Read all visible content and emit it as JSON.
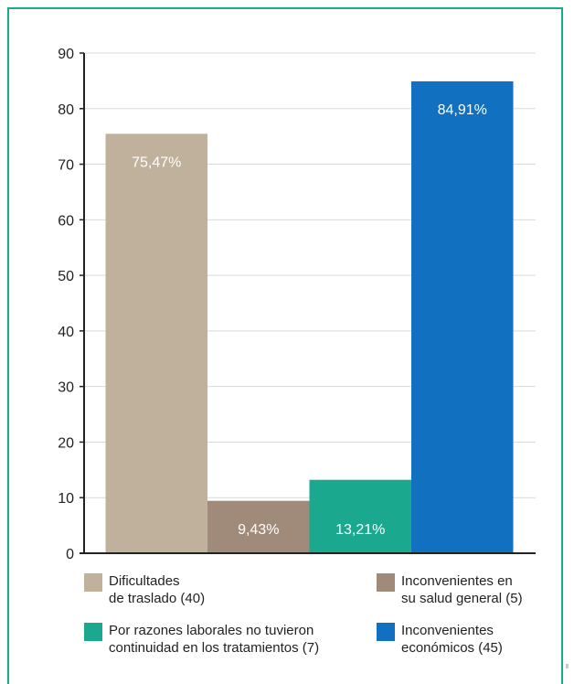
{
  "chart_data": {
    "type": "bar",
    "ylim": [
      0,
      90
    ],
    "yticks": [
      "0",
      "10",
      "20",
      "30",
      "40",
      "50",
      "60",
      "70",
      "80",
      "90"
    ],
    "grid": true,
    "categories": [
      "Dificultades de traslado (40)",
      "Inconvenientes en su salud general (5)",
      "Por razones laborales no tuvieron continuidad en los tratamientos (7)",
      "Inconvenientes económicos (45)"
    ],
    "values": [
      75.47,
      9.43,
      13.21,
      84.91
    ],
    "data_labels": [
      "75,47%",
      "9,43%",
      "13,21%",
      "84,91%"
    ],
    "colors": [
      "#bfb19c",
      "#a08b7b",
      "#1aa88f",
      "#1170bf"
    ],
    "legend_placement": "bottom"
  },
  "legend": [
    {
      "line1": "Dificultades",
      "line2": "de traslado (40)",
      "color": "#bfb19c"
    },
    {
      "line1": "Inconvenientes en",
      "line2": "su salud general (5)",
      "color": "#a08b7b"
    },
    {
      "line1": "Por razones laborales no tuvieron",
      "line2": "continuidad en los tratamientos (7)",
      "color": "#1aa88f"
    },
    {
      "line1": "Inconvenientes",
      "line2": "económicos (45)",
      "color": "#1170bf"
    }
  ],
  "frame_color": "#1aa88f"
}
